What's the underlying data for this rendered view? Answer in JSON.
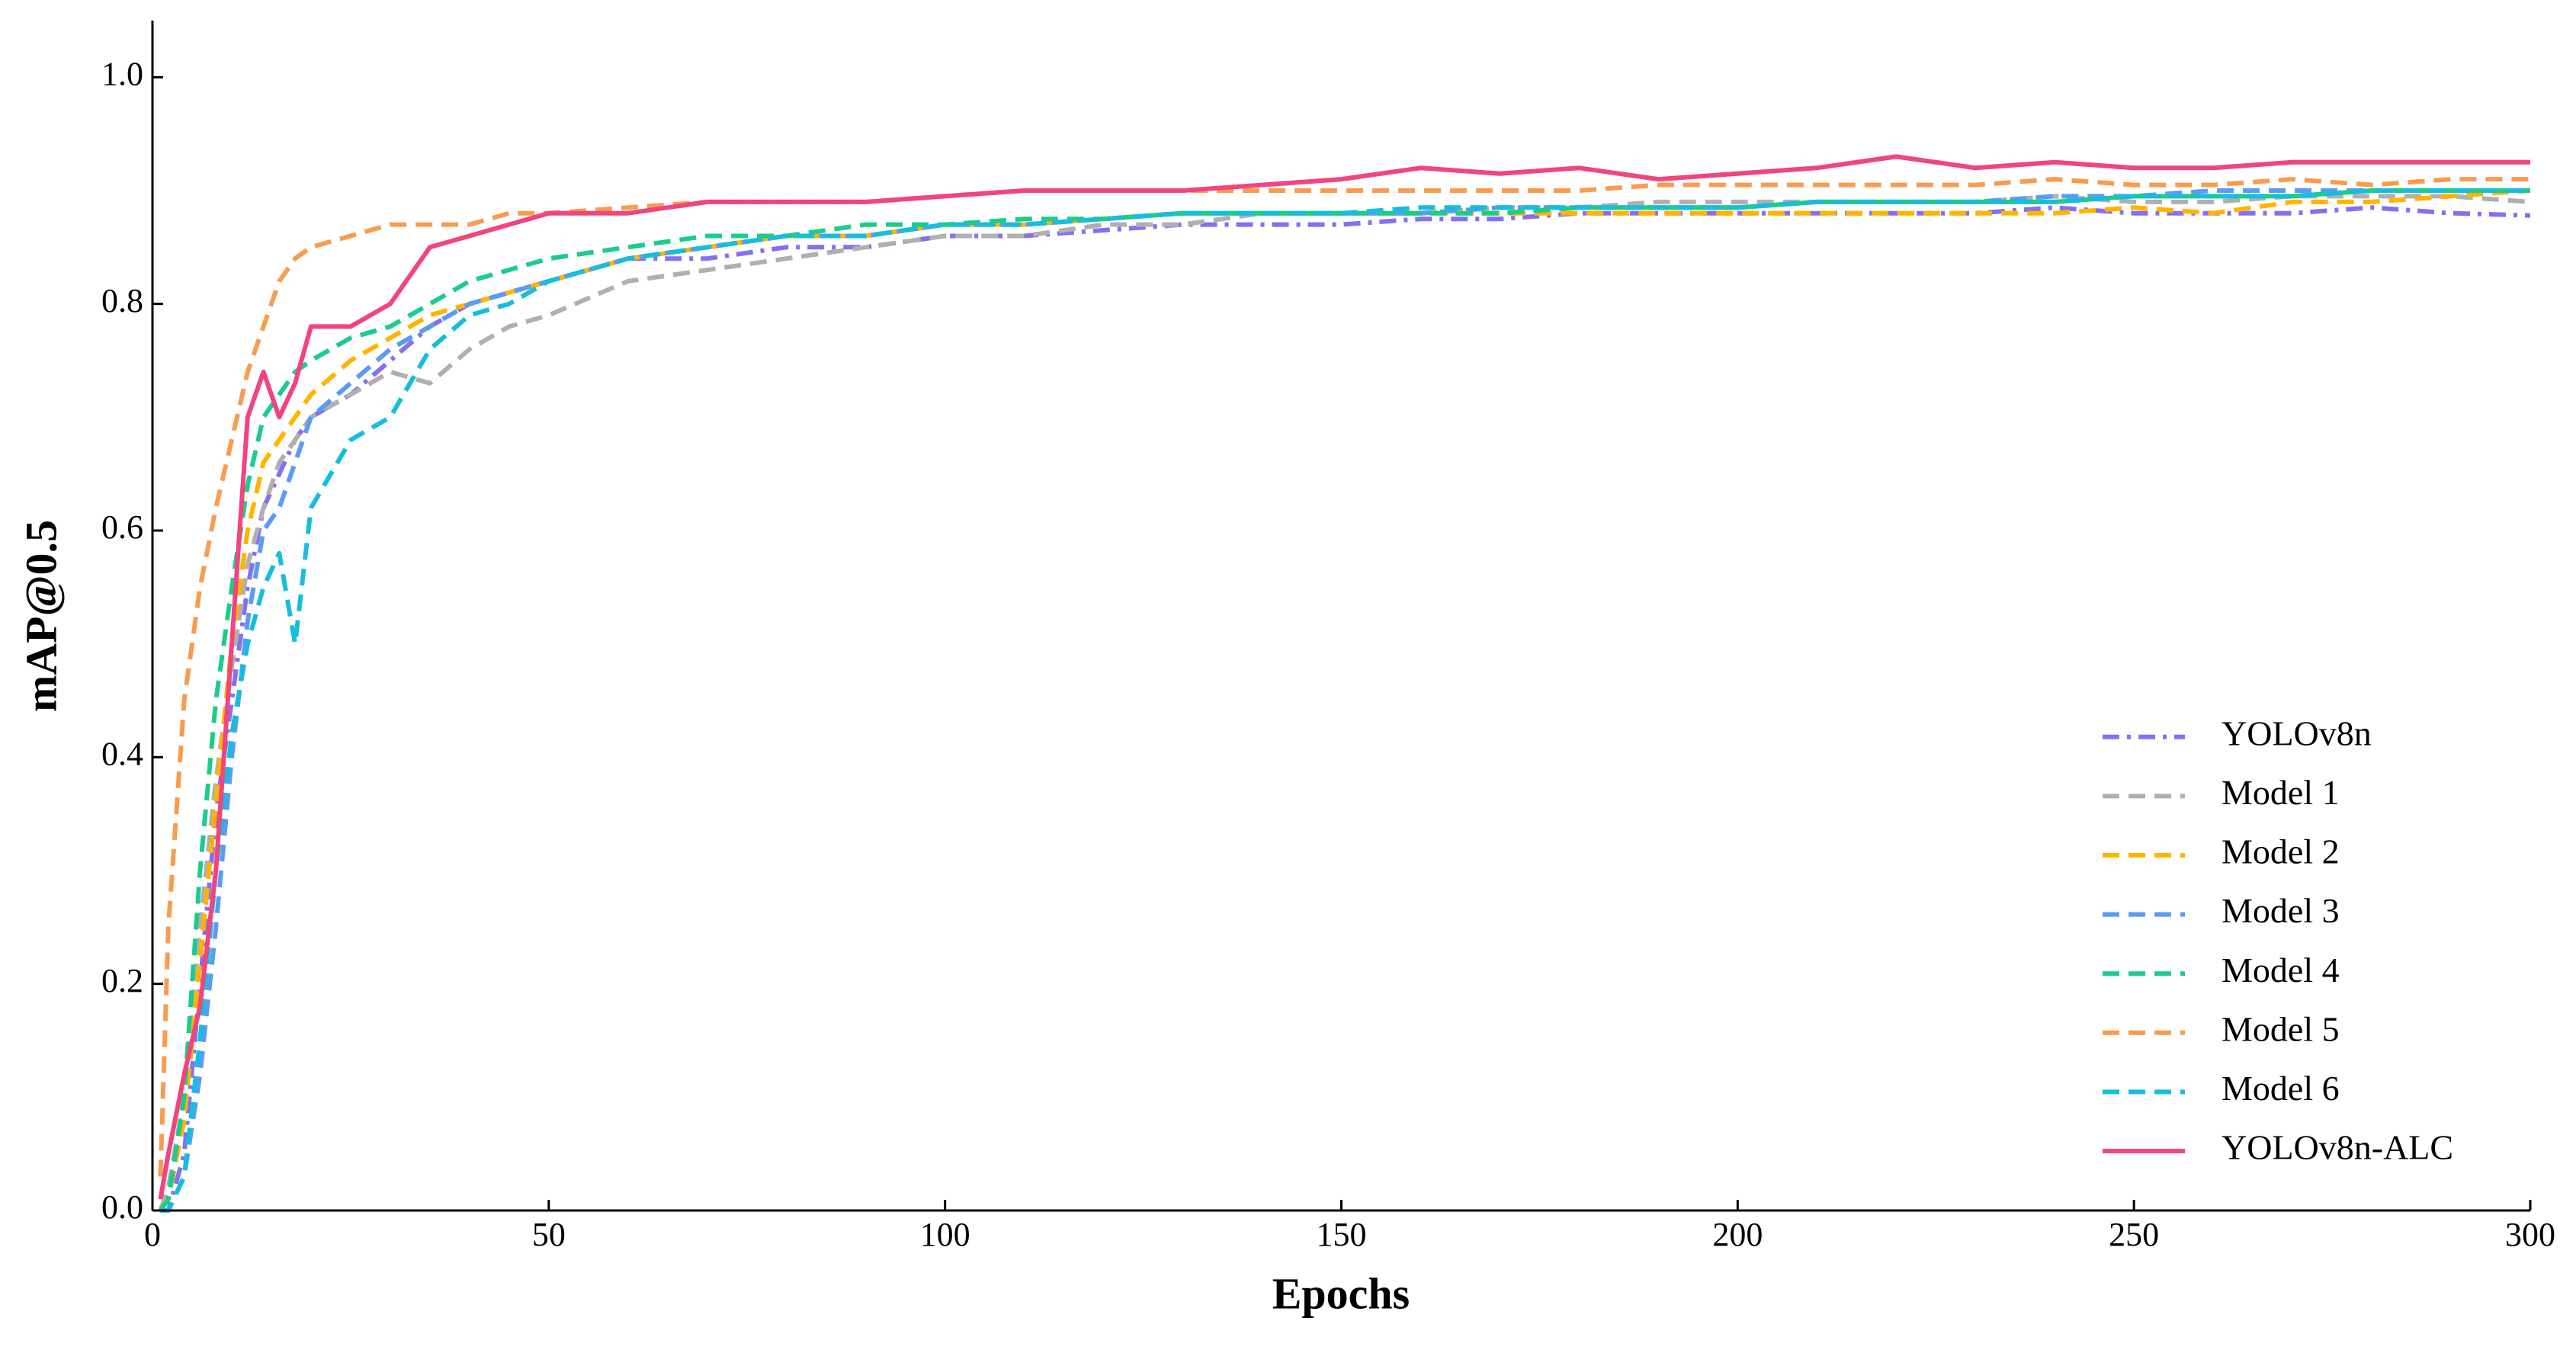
{
  "chart_data": {
    "type": "line",
    "xlabel": "Epochs",
    "ylabel": "mAP@0.5",
    "x": [
      1,
      2,
      4,
      6,
      8,
      10,
      12,
      14,
      16,
      18,
      20,
      25,
      30,
      35,
      40,
      45,
      50,
      60,
      70,
      80,
      90,
      100,
      110,
      120,
      130,
      140,
      150,
      160,
      170,
      180,
      190,
      200,
      210,
      220,
      230,
      240,
      250,
      260,
      270,
      280,
      290,
      300
    ],
    "series": [
      {
        "name": "YOLOv8n",
        "color": "#8470f0",
        "linestyle": "dashdot",
        "values": [
          0.0,
          0.0,
          0.05,
          0.2,
          0.35,
          0.45,
          0.55,
          0.62,
          0.65,
          0.68,
          0.7,
          0.72,
          0.75,
          0.78,
          0.8,
          0.81,
          0.82,
          0.84,
          0.84,
          0.85,
          0.85,
          0.86,
          0.86,
          0.865,
          0.87,
          0.87,
          0.87,
          0.875,
          0.875,
          0.88,
          0.88,
          0.88,
          0.88,
          0.88,
          0.88,
          0.885,
          0.88,
          0.88,
          0.88,
          0.885,
          0.88,
          0.878
        ]
      },
      {
        "name": "Model 1",
        "color": "#b0b0b0",
        "linestyle": "dashed",
        "values": [
          0.0,
          0.02,
          0.1,
          0.25,
          0.38,
          0.48,
          0.57,
          0.62,
          0.66,
          0.68,
          0.7,
          0.72,
          0.74,
          0.73,
          0.76,
          0.78,
          0.79,
          0.82,
          0.83,
          0.84,
          0.85,
          0.86,
          0.86,
          0.87,
          0.87,
          0.88,
          0.88,
          0.88,
          0.885,
          0.885,
          0.89,
          0.89,
          0.89,
          0.89,
          0.89,
          0.895,
          0.89,
          0.89,
          0.895,
          0.895,
          0.895,
          0.89
        ]
      },
      {
        "name": "Model 2",
        "color": "#ffb400",
        "linestyle": "dashed",
        "values": [
          0.0,
          0.01,
          0.08,
          0.22,
          0.36,
          0.5,
          0.6,
          0.66,
          0.68,
          0.7,
          0.72,
          0.75,
          0.77,
          0.79,
          0.8,
          0.81,
          0.82,
          0.84,
          0.85,
          0.86,
          0.86,
          0.87,
          0.87,
          0.875,
          0.88,
          0.88,
          0.88,
          0.88,
          0.88,
          0.88,
          0.88,
          0.88,
          0.88,
          0.88,
          0.88,
          0.88,
          0.885,
          0.88,
          0.89,
          0.89,
          0.895,
          0.9
        ]
      },
      {
        "name": "Model 3",
        "color": "#5a9cf2",
        "linestyle": "dashed",
        "values": [
          0.0,
          0.0,
          0.03,
          0.12,
          0.25,
          0.4,
          0.52,
          0.6,
          0.62,
          0.66,
          0.7,
          0.73,
          0.76,
          0.78,
          0.8,
          0.81,
          0.82,
          0.84,
          0.85,
          0.86,
          0.86,
          0.87,
          0.87,
          0.875,
          0.88,
          0.88,
          0.88,
          0.88,
          0.885,
          0.885,
          0.885,
          0.885,
          0.89,
          0.89,
          0.89,
          0.895,
          0.895,
          0.9,
          0.9,
          0.9,
          0.9,
          0.9
        ]
      },
      {
        "name": "Model 4",
        "color": "#1ccc8a",
        "linestyle": "dashed",
        "values": [
          0.0,
          0.01,
          0.1,
          0.3,
          0.45,
          0.55,
          0.64,
          0.7,
          0.72,
          0.74,
          0.75,
          0.77,
          0.78,
          0.8,
          0.82,
          0.83,
          0.84,
          0.85,
          0.86,
          0.86,
          0.87,
          0.87,
          0.875,
          0.875,
          0.88,
          0.88,
          0.88,
          0.88,
          0.88,
          0.885,
          0.885,
          0.885,
          0.89,
          0.89,
          0.89,
          0.89,
          0.895,
          0.895,
          0.895,
          0.9,
          0.9,
          0.9
        ]
      },
      {
        "name": "Model 5",
        "color": "#f89c50",
        "linestyle": "dashed",
        "values": [
          0.03,
          0.25,
          0.45,
          0.55,
          0.62,
          0.68,
          0.74,
          0.78,
          0.82,
          0.84,
          0.85,
          0.86,
          0.87,
          0.87,
          0.87,
          0.88,
          0.88,
          0.885,
          0.89,
          0.89,
          0.89,
          0.895,
          0.9,
          0.9,
          0.9,
          0.9,
          0.9,
          0.9,
          0.9,
          0.9,
          0.905,
          0.905,
          0.905,
          0.905,
          0.905,
          0.91,
          0.905,
          0.905,
          0.91,
          0.905,
          0.91,
          0.91
        ]
      },
      {
        "name": "Model 6",
        "color": "#16bedc",
        "linestyle": "dashed",
        "values": [
          0.0,
          0.0,
          0.03,
          0.15,
          0.3,
          0.42,
          0.5,
          0.55,
          0.58,
          0.5,
          0.62,
          0.68,
          0.7,
          0.76,
          0.79,
          0.8,
          0.82,
          0.84,
          0.85,
          0.86,
          0.86,
          0.87,
          0.87,
          0.875,
          0.88,
          0.88,
          0.88,
          0.885,
          0.885,
          0.885,
          0.885,
          0.885,
          0.89,
          0.89,
          0.89,
          0.89,
          0.895,
          0.895,
          0.895,
          0.9,
          0.9,
          0.9
        ]
      },
      {
        "name": "YOLOv8n-ALC",
        "color": "#f0457e",
        "linestyle": "solid",
        "values": [
          0.01,
          0.05,
          0.12,
          0.18,
          0.3,
          0.5,
          0.7,
          0.74,
          0.7,
          0.73,
          0.78,
          0.78,
          0.8,
          0.85,
          0.86,
          0.87,
          0.88,
          0.88,
          0.89,
          0.89,
          0.89,
          0.895,
          0.9,
          0.9,
          0.9,
          0.905,
          0.91,
          0.92,
          0.915,
          0.92,
          0.91,
          0.915,
          0.92,
          0.93,
          0.92,
          0.925,
          0.92,
          0.92,
          0.925,
          0.925,
          0.925,
          0.925
        ]
      }
    ],
    "xlim": [
      0,
      300
    ],
    "xticks": [
      0,
      50,
      100,
      150,
      200,
      250,
      300
    ],
    "ylim": [
      0,
      1.05
    ],
    "yticks": [
      {
        "value": 0,
        "label": "0.0"
      },
      {
        "value": 0.2,
        "label": "0.2"
      },
      {
        "value": 0.4,
        "label": "0.4"
      },
      {
        "value": 0.6,
        "label": "0.6"
      },
      {
        "value": 0.8,
        "label": "0.8"
      },
      {
        "value": 1.0,
        "label": "1.0"
      }
    ],
    "grid": false,
    "legend": "lower right"
  }
}
